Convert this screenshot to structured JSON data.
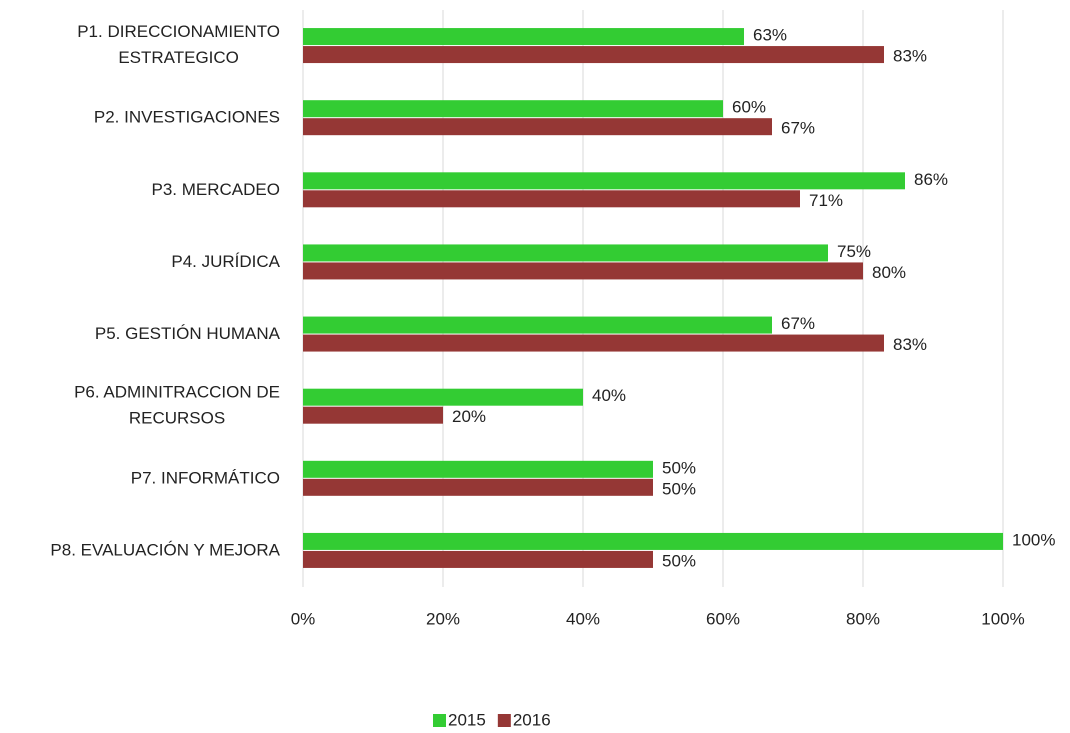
{
  "chart_data": {
    "type": "bar",
    "orientation": "horizontal",
    "categories": [
      "P1. DIRECCIONAMIENTO ESTRATEGICO",
      "P2. INVESTIGACIONES",
      "P3. MERCADEO",
      "P4. JURÍDICA",
      "P5. GESTIÓN HUMANA",
      "P6. ADMINITRACCION DE RECURSOS",
      "P7. INFORMÁTICO",
      "P8. EVALUACIÓN Y MEJORA"
    ],
    "series": [
      {
        "name": "2015",
        "color": "#33cc33",
        "values": [
          63,
          60,
          86,
          75,
          67,
          40,
          50,
          100
        ],
        "value_labels": [
          "63%",
          "60%",
          "86%",
          "75%",
          "67%",
          "40%",
          "50%",
          "100%"
        ]
      },
      {
        "name": "2016",
        "color": "#953735",
        "values": [
          83,
          67,
          71,
          80,
          83,
          20,
          50,
          50
        ],
        "value_labels": [
          "83%",
          "67%",
          "71%",
          "80%",
          "83%",
          "20%",
          "50%",
          "50%"
        ]
      }
    ],
    "xlim": [
      0,
      100
    ],
    "xticks": [
      {
        "value": 0,
        "label": "0%"
      },
      {
        "value": 20,
        "label": "20%"
      },
      {
        "value": 40,
        "label": "40%"
      },
      {
        "value": 60,
        "label": "60%"
      },
      {
        "value": 80,
        "label": "80%"
      },
      {
        "value": 100,
        "label": "100%"
      }
    ],
    "grid": true,
    "legend": "bottom"
  }
}
